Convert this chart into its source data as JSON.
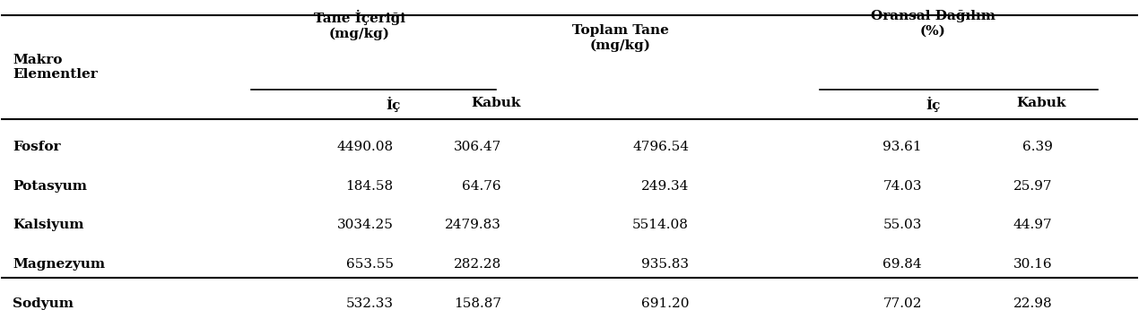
{
  "col_header_row1": [
    "",
    "Tane İçeriği\n(mg/kg)",
    "",
    "Toplam Tane\n(mg/kg)",
    "Oransal Dağılım\n(%)",
    ""
  ],
  "col_header_row2": [
    "Makro\nElementler",
    "İç",
    "Kabuk",
    "",
    "İç",
    "Kabuk"
  ],
  "rows": [
    [
      "Fosfor",
      "4490.08",
      "306.47",
      "4796.54",
      "93.61",
      "6.39"
    ],
    [
      "Potasyum",
      "184.58",
      "64.76",
      "249.34",
      "74.03",
      "25.97"
    ],
    [
      "Kalsiyum",
      "3034.25",
      "2479.83",
      "5514.08",
      "55.03",
      "44.97"
    ],
    [
      "Magnezyum",
      "653.55",
      "282.28",
      "935.83",
      "69.84",
      "30.16"
    ],
    [
      "Sodyum",
      "532.33",
      "158.87",
      "691.20",
      "77.02",
      "22.98"
    ]
  ],
  "background_color": "#ffffff",
  "text_color": "#000000",
  "font_size": 11,
  "header_font_size": 11
}
